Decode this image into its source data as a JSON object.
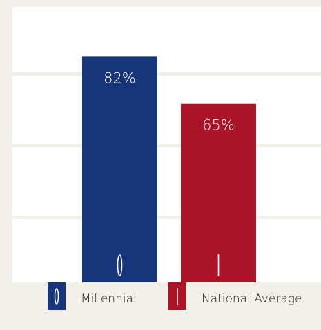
{
  "chart_data": {
    "type": "bar",
    "categories": [
      "Millennial",
      "National Average"
    ],
    "values": [
      82,
      65
    ],
    "value_labels": [
      "82%",
      "65%"
    ],
    "colors": [
      "#17357a",
      "#ab1428"
    ],
    "ylim": [
      0,
      100
    ],
    "grid": true,
    "legend": "bottom",
    "icons": [
      "zero-icon",
      "bar-icon"
    ]
  }
}
